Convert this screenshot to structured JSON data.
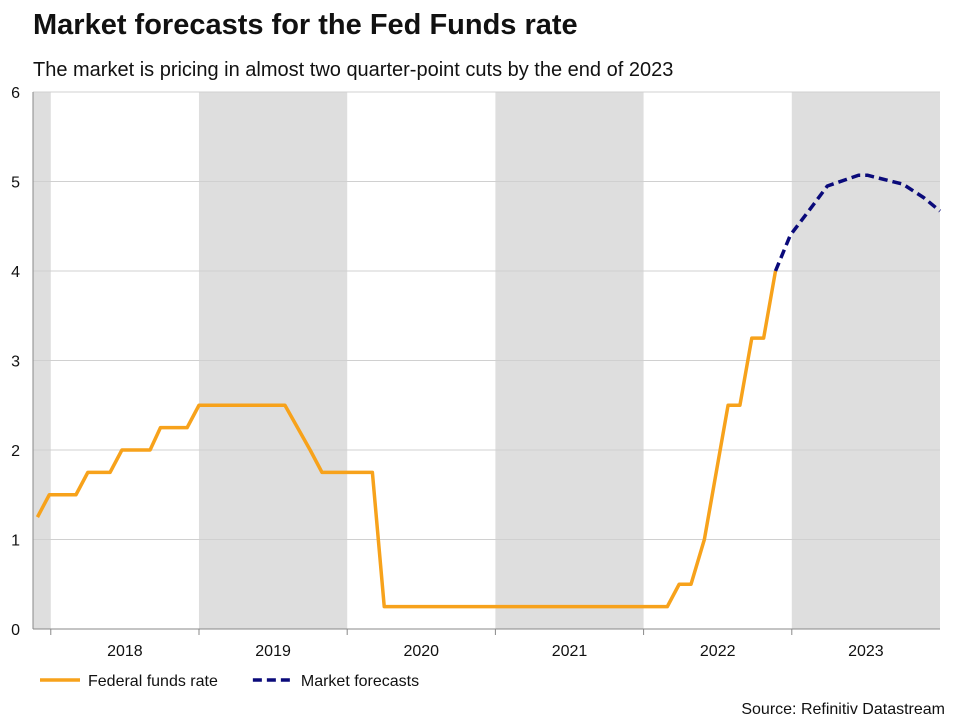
{
  "chart_data": {
    "type": "line",
    "title": "Market forecasts for the Fed Funds rate",
    "subtitle": "The market is pricing in almost two quarter-point cuts by the end of 2023",
    "source": "Source: Refinitiv Datastream",
    "xlim": [
      2017.88,
      2024.0
    ],
    "xticks": [
      {
        "value": 2018.5,
        "label": "2018"
      },
      {
        "value": 2019.5,
        "label": "2019"
      },
      {
        "value": 2020.5,
        "label": "2020"
      },
      {
        "value": 2021.5,
        "label": "2021"
      },
      {
        "value": 2022.5,
        "label": "2022"
      },
      {
        "value": 2023.5,
        "label": "2023"
      }
    ],
    "ylim": [
      0,
      6
    ],
    "yticks": [
      0,
      1,
      2,
      3,
      4,
      5,
      6
    ],
    "grid": true,
    "series": [
      {
        "name": "Federal funds rate",
        "color": "#f7a21b",
        "dash": false,
        "x": [
          2017.91,
          2017.99,
          2018.17,
          2018.25,
          2018.4,
          2018.48,
          2018.67,
          2018.74,
          2018.92,
          2019.0,
          2019.58,
          2019.75,
          2019.83,
          2020.17,
          2020.25,
          2022.16,
          2022.24,
          2022.32,
          2022.41,
          2022.57,
          2022.65,
          2022.73,
          2022.81,
          2022.89
        ],
        "values": [
          1.25,
          1.5,
          1.5,
          1.75,
          1.75,
          2.0,
          2.0,
          2.25,
          2.25,
          2.5,
          2.5,
          2.0,
          1.75,
          1.75,
          0.25,
          0.25,
          0.5,
          0.5,
          1.0,
          2.5,
          2.5,
          3.25,
          3.25,
          4.0
        ]
      },
      {
        "name": "Market forecasts",
        "color": "#0a0a7a",
        "dash": true,
        "x": [
          2022.89,
          2022.99,
          2023.15,
          2023.24,
          2023.45,
          2023.51,
          2023.75,
          2023.89,
          2024.0
        ],
        "values": [
          4.0,
          4.4,
          4.75,
          4.95,
          5.07,
          5.07,
          4.97,
          4.82,
          4.67
        ]
      }
    ]
  }
}
